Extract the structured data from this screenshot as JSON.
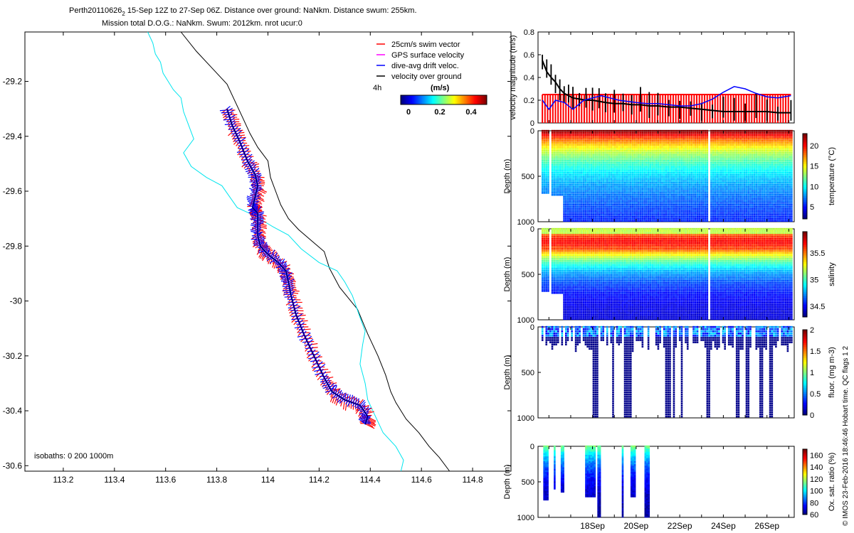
{
  "header": {
    "line1_prefix": "Perth20110626",
    "line1_sub": "2",
    "line1_rest": " 15-Sep 12Z to 27-Sep 06Z. Distance over ground: NaNkm. Distance swum: 255km.",
    "line2": "Mission total D.O.G.: NaNkm. Swum: 2012km. nrot ucur:0"
  },
  "footer_note": "© IMOS 23-Feb-2016 18:46:46 Hobart time. QC flags 1 2",
  "colors": {
    "coast": "#000000",
    "isobath": "#00e5ee",
    "swim": "#ff0000",
    "gps": "#ff00ff",
    "drift": "#0000ff",
    "ground": "#000000",
    "speed_limit": "#ff0000"
  },
  "chart_data": [
    {
      "id": "map",
      "type": "scatter",
      "title": "",
      "xlim": [
        113.05,
        114.95
      ],
      "ylim": [
        -30.62,
        -29.02
      ],
      "xticks": [
        113.2,
        113.4,
        113.6,
        113.8,
        114,
        114.2,
        114.4,
        114.6,
        114.8
      ],
      "xtick_labels": [
        "113.2",
        "113.4",
        "113.6",
        "113.8",
        "114",
        "114.2",
        "114.4",
        "114.6",
        "114.8"
      ],
      "yticks": [
        -29.2,
        -29.4,
        -29.6,
        -29.8,
        -30,
        -30.2,
        -30.4,
        -30.6
      ],
      "ytick_labels": [
        "-29.2",
        "-29.4",
        "-29.6",
        "-29.8",
        "-30",
        "-30.2",
        "-30.4",
        "-30.6"
      ],
      "legend": {
        "placement": "top-right",
        "items": [
          {
            "label": "25cm/s swim vector",
            "color": "#ff0000"
          },
          {
            "label": "GPS surface velocity",
            "color": "#ff00ff"
          },
          {
            "label": "dive-avg drift veloc.",
            "color": "#0000ff"
          },
          {
            "label": "velocity over ground",
            "color": "#000000"
          }
        ],
        "interval_label": "4h",
        "colorbar_title": "(m/s)",
        "colorbar_ticks": [
          "0",
          "0.2",
          "0.4"
        ],
        "colorbar_range": [
          -0.05,
          0.5
        ]
      },
      "isobath_label": "isobaths: 0   200  1000m",
      "coastline_1000m": [
        [
          113.66,
          -29.02
        ],
        [
          113.72,
          -29.09
        ],
        [
          113.78,
          -29.15
        ],
        [
          113.84,
          -29.21
        ],
        [
          113.87,
          -29.27
        ],
        [
          113.9,
          -29.33
        ],
        [
          113.93,
          -29.39
        ],
        [
          113.96,
          -29.44
        ],
        [
          114.0,
          -29.49
        ],
        [
          114.01,
          -29.55
        ],
        [
          114.03,
          -29.6
        ],
        [
          114.05,
          -29.65
        ],
        [
          114.08,
          -29.7
        ],
        [
          114.12,
          -29.74
        ],
        [
          114.17,
          -29.78
        ],
        [
          114.22,
          -29.82
        ],
        [
          114.24,
          -29.88
        ],
        [
          114.28,
          -29.95
        ],
        [
          114.35,
          -30.03
        ],
        [
          114.39,
          -30.12
        ],
        [
          114.43,
          -30.2
        ],
        [
          114.46,
          -30.27
        ],
        [
          114.48,
          -30.33
        ],
        [
          114.5,
          -30.37
        ],
        [
          114.54,
          -30.43
        ],
        [
          114.59,
          -30.48
        ],
        [
          114.63,
          -30.53
        ],
        [
          114.67,
          -30.57
        ],
        [
          114.71,
          -30.62
        ]
      ],
      "isobath_200m": [
        [
          113.53,
          -29.02
        ],
        [
          113.55,
          -29.06
        ],
        [
          113.56,
          -29.1
        ],
        [
          113.58,
          -29.13
        ],
        [
          113.59,
          -29.17
        ],
        [
          113.61,
          -29.2
        ],
        [
          113.63,
          -29.23
        ],
        [
          113.66,
          -29.26
        ],
        [
          113.67,
          -29.31
        ],
        [
          113.69,
          -29.36
        ],
        [
          113.71,
          -29.41
        ],
        [
          113.67,
          -29.46
        ],
        [
          113.7,
          -29.51
        ],
        [
          113.76,
          -29.55
        ],
        [
          113.82,
          -29.58
        ],
        [
          113.85,
          -29.62
        ],
        [
          113.88,
          -29.66
        ],
        [
          113.95,
          -29.69
        ],
        [
          114.02,
          -29.73
        ],
        [
          114.08,
          -29.76
        ],
        [
          114.13,
          -29.81
        ],
        [
          114.2,
          -29.86
        ],
        [
          114.27,
          -29.89
        ],
        [
          114.3,
          -29.93
        ],
        [
          114.33,
          -29.98
        ],
        [
          114.36,
          -30.06
        ],
        [
          114.38,
          -30.11
        ],
        [
          114.37,
          -30.16
        ],
        [
          114.36,
          -30.23
        ],
        [
          114.38,
          -30.3
        ],
        [
          114.39,
          -30.36
        ],
        [
          114.42,
          -30.42
        ],
        [
          114.45,
          -30.48
        ],
        [
          114.5,
          -30.53
        ],
        [
          114.53,
          -30.58
        ],
        [
          114.52,
          -30.62
        ]
      ],
      "track": [
        [
          113.84,
          -29.3
        ],
        [
          113.86,
          -29.36
        ],
        [
          113.89,
          -29.42
        ],
        [
          113.92,
          -29.49
        ],
        [
          113.95,
          -29.54
        ],
        [
          113.96,
          -29.58
        ],
        [
          113.95,
          -29.62
        ],
        [
          113.94,
          -29.66
        ],
        [
          113.96,
          -29.68
        ],
        [
          113.96,
          -29.72
        ],
        [
          113.96,
          -29.76
        ],
        [
          113.97,
          -29.8
        ],
        [
          114.0,
          -29.83
        ],
        [
          114.04,
          -29.86
        ],
        [
          114.07,
          -29.89
        ],
        [
          114.08,
          -29.93
        ],
        [
          114.09,
          -29.98
        ],
        [
          114.11,
          -30.05
        ],
        [
          114.14,
          -30.12
        ],
        [
          114.18,
          -30.2
        ],
        [
          114.22,
          -30.28
        ],
        [
          114.25,
          -30.33
        ],
        [
          114.3,
          -30.36
        ],
        [
          114.36,
          -30.38
        ],
        [
          114.39,
          -30.42
        ],
        [
          114.38,
          -30.45
        ]
      ]
    },
    {
      "id": "velocity",
      "type": "line",
      "ylabel": "velocity magnitude (m/s)",
      "xlim": [
        15.5,
        27.25
      ],
      "ylim": [
        0,
        0.8
      ],
      "yticks": [
        "0",
        "0.2",
        "0.4",
        "0.6",
        "0.8"
      ],
      "series": [
        {
          "color": "#ff0000",
          "values": [
            [
              15.7,
              0.25
            ],
            [
              16.0,
              0.25
            ],
            [
              17.0,
              0.25
            ],
            [
              18.0,
              0.25
            ],
            [
              20.0,
              0.25
            ],
            [
              22.0,
              0.25
            ],
            [
              24.0,
              0.25
            ],
            [
              26.0,
              0.25
            ],
            [
              27.1,
              0.25
            ]
          ]
        },
        {
          "color": "#0000ff",
          "values": [
            [
              15.7,
              0.2
            ],
            [
              16.0,
              0.12
            ],
            [
              16.3,
              0.2
            ],
            [
              16.7,
              0.18
            ],
            [
              17.1,
              0.12
            ],
            [
              17.6,
              0.2
            ],
            [
              18.0,
              0.22
            ],
            [
              18.4,
              0.24
            ],
            [
              18.8,
              0.22
            ],
            [
              19.2,
              0.2
            ],
            [
              19.6,
              0.19
            ],
            [
              20.0,
              0.18
            ],
            [
              20.5,
              0.17
            ],
            [
              21.0,
              0.17
            ],
            [
              21.5,
              0.16
            ],
            [
              22.0,
              0.15
            ],
            [
              22.5,
              0.15
            ],
            [
              23.0,
              0.17
            ],
            [
              23.5,
              0.21
            ],
            [
              24.0,
              0.27
            ],
            [
              24.5,
              0.32
            ],
            [
              25.0,
              0.3
            ],
            [
              25.5,
              0.26
            ],
            [
              26.0,
              0.23
            ],
            [
              26.5,
              0.22
            ],
            [
              27.1,
              0.24
            ]
          ]
        },
        {
          "color": "#000000",
          "values": [
            [
              15.7,
              0.55
            ],
            [
              15.9,
              0.45
            ],
            [
              16.1,
              0.4
            ],
            [
              16.3,
              0.36
            ],
            [
              16.5,
              0.3
            ],
            [
              16.7,
              0.26
            ],
            [
              16.9,
              0.24
            ],
            [
              17.1,
              0.22
            ],
            [
              17.4,
              0.21
            ],
            [
              17.7,
              0.2
            ],
            [
              18.0,
              0.2
            ],
            [
              18.3,
              0.19
            ],
            [
              18.6,
              0.18
            ],
            [
              19.0,
              0.17
            ],
            [
              19.4,
              0.17
            ],
            [
              19.8,
              0.16
            ],
            [
              20.2,
              0.16
            ],
            [
              20.6,
              0.15
            ],
            [
              21.0,
              0.15
            ],
            [
              21.5,
              0.14
            ],
            [
              22.0,
              0.14
            ],
            [
              22.5,
              0.13
            ],
            [
              23.0,
              0.12
            ],
            [
              23.5,
              0.11
            ],
            [
              24.0,
              0.1
            ],
            [
              24.5,
              0.1
            ],
            [
              25.0,
              0.1
            ],
            [
              25.5,
              0.1
            ],
            [
              26.0,
              0.1
            ],
            [
              26.5,
              0.09
            ],
            [
              27.1,
              0.09
            ]
          ]
        }
      ]
    },
    {
      "id": "temperature",
      "type": "heatmap",
      "ylabel": "Depth (m)",
      "clabel": "temperature (°C)",
      "ylim": [
        0,
        1000
      ],
      "ytick_labels": [
        "0",
        "500",
        "1000"
      ],
      "cticks": [
        "20",
        "15",
        "10",
        "5"
      ],
      "crange": [
        2,
        23
      ]
    },
    {
      "id": "salinity",
      "type": "heatmap",
      "ylabel": "Depth (m)",
      "clabel": "salinity",
      "ylim": [
        0,
        1000
      ],
      "ytick_labels": [
        "0",
        "500",
        "1000"
      ],
      "cticks": [
        "35.5",
        "35",
        "34.5"
      ],
      "crange": [
        34.3,
        35.9
      ]
    },
    {
      "id": "fluor",
      "type": "heatmap",
      "ylabel": "Depth (m)",
      "clabel": "fluor. (mg m-3)",
      "ylim": [
        0,
        1000
      ],
      "ytick_labels": [
        "0",
        "500",
        "1000"
      ],
      "cticks": [
        "2",
        "1.5",
        "1",
        "0.5",
        "0"
      ],
      "crange": [
        0,
        2
      ]
    },
    {
      "id": "oxygen",
      "type": "heatmap",
      "ylabel": "Depth (m)",
      "clabel": "Ox. sat. ratio (%)",
      "ylim": [
        0,
        1000
      ],
      "ytick_labels": [
        "0",
        "500",
        "1000"
      ],
      "cticks": [
        "160",
        "140",
        "120",
        "100",
        "80",
        "60"
      ],
      "crange": [
        60,
        170
      ],
      "xticks": [
        18,
        20,
        22,
        24,
        26
      ],
      "xtick_labels": [
        "18Sep",
        "20Sep",
        "22Sep",
        "24Sep",
        "26Sep"
      ],
      "xlim": [
        15.5,
        27.25
      ]
    }
  ]
}
